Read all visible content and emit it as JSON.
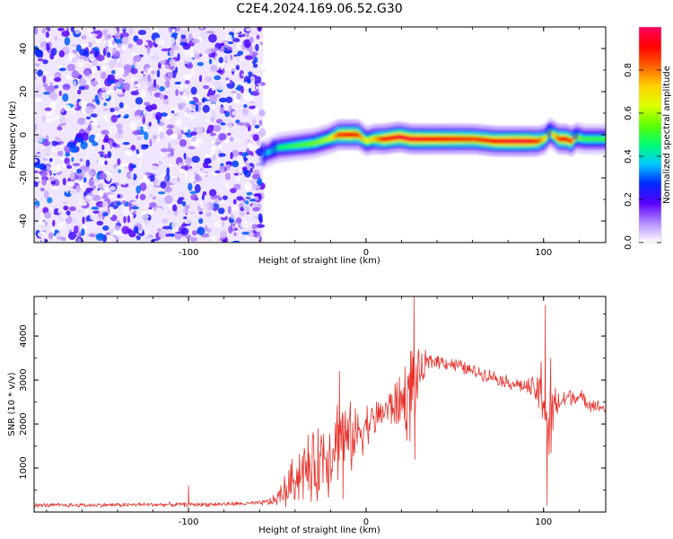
{
  "title": "C2E4.2024.169.06.52.G30",
  "chart_data": [
    {
      "type": "heatmap",
      "title": "",
      "xlabel": "Height of straight line (km)",
      "ylabel": "Frequency (Hz)",
      "xlim": [
        -187,
        135
      ],
      "ylim": [
        -50,
        50
      ],
      "xticks": [
        -100,
        0,
        100
      ],
      "yticks": [
        -40,
        -20,
        0,
        20,
        40
      ],
      "grid": false,
      "noise_region": {
        "x": [
          -187,
          -58
        ],
        "y": [
          -50,
          50
        ]
      },
      "signal_track": {
        "x": [
          -58,
          -50,
          -40,
          -30,
          -22,
          -16,
          -10,
          -5,
          -2,
          0,
          3,
          10,
          18,
          25,
          40,
          60,
          72,
          80,
          90,
          96,
          100,
          103,
          108,
          112,
          115,
          118,
          122,
          135
        ],
        "y": [
          -9,
          -6,
          -5,
          -4,
          -2,
          0,
          0,
          0,
          -2,
          -3,
          -2,
          -2,
          -1,
          -2,
          -2,
          -2,
          -3,
          -3,
          -3,
          -3,
          -2,
          1,
          -2,
          -2,
          -3,
          -1,
          -2,
          -2
        ],
        "peak_amplitude": [
          0.35,
          0.45,
          0.5,
          0.55,
          0.6,
          0.85,
          0.9,
          0.85,
          0.7,
          0.65,
          0.7,
          0.9,
          0.95,
          0.95,
          0.9,
          0.85,
          0.9,
          0.95,
          0.95,
          0.85,
          0.7,
          0.6,
          0.85,
          0.9,
          0.85,
          0.6,
          0.5,
          0.5
        ]
      },
      "colorbar": {
        "label": "Normalized spectral amplitude",
        "range": [
          0,
          1
        ],
        "ticks": [
          "0.0",
          "0.2",
          "0.4",
          "0.6",
          "0.8"
        ],
        "tick_values": [
          0,
          0.2,
          0.4,
          0.6,
          0.8
        ],
        "colors": [
          "#ffffff",
          "#b48cff",
          "#5a00ff",
          "#0028ff",
          "#00c8ff",
          "#00ff70",
          "#60ff00",
          "#e0ff00",
          "#ffd000",
          "#ff6000",
          "#ff0000",
          "#ff0060"
        ]
      }
    },
    {
      "type": "line",
      "title": "",
      "xlabel": "Height of straight line (km)",
      "ylabel": "SNR (10 * v/v)",
      "xlim": [
        -187,
        135
      ],
      "ylim": [
        0,
        4900
      ],
      "xticks": [
        -100,
        0,
        100
      ],
      "yticks": [
        1000,
        2000,
        3000,
        4000
      ],
      "grid": false,
      "color": "#e8312a",
      "series": [
        {
          "name": "",
          "x": [
            -187,
            -150,
            -120,
            -100,
            -80,
            -60,
            -52,
            -45,
            -40,
            -35,
            -30,
            -25,
            -20,
            -15,
            -10,
            -5,
            0,
            5,
            10,
            15,
            20,
            25,
            30,
            35,
            40,
            50,
            60,
            70,
            80,
            90,
            95,
            100,
            103,
            106,
            110,
            115,
            120,
            125,
            130,
            135
          ],
          "y": [
            150,
            160,
            170,
            170,
            180,
            200,
            250,
            500,
            800,
            1000,
            900,
            1300,
            1400,
            1800,
            1600,
            1800,
            2000,
            2100,
            2300,
            2400,
            2500,
            2700,
            3100,
            3400,
            3450,
            3350,
            3200,
            3100,
            2950,
            2850,
            2750,
            2700,
            1700,
            2400,
            2500,
            2650,
            2600,
            2500,
            2400,
            2350
          ],
          "noise_amplitude": [
            60,
            60,
            60,
            60,
            60,
            60,
            150,
            500,
            700,
            900,
            1000,
            1100,
            1200,
            1200,
            1000,
            800,
            600,
            500,
            500,
            600,
            900,
            1400,
            600,
            300,
            200,
            200,
            180,
            180,
            180,
            200,
            400,
            1200,
            1600,
            600,
            300,
            250,
            220,
            200,
            180,
            180
          ],
          "spikes": [
            {
              "x": 27,
              "y": 4900
            },
            {
              "x": 27.5,
              "y": 1200
            },
            {
              "x": 101,
              "y": 4700
            },
            {
              "x": 102,
              "y": 150
            },
            {
              "x": 104,
              "y": 3500
            },
            {
              "x": -100,
              "y": 600
            },
            {
              "x": -15,
              "y": 3200
            },
            {
              "x": -13,
              "y": 300
            }
          ]
        }
      ]
    }
  ]
}
